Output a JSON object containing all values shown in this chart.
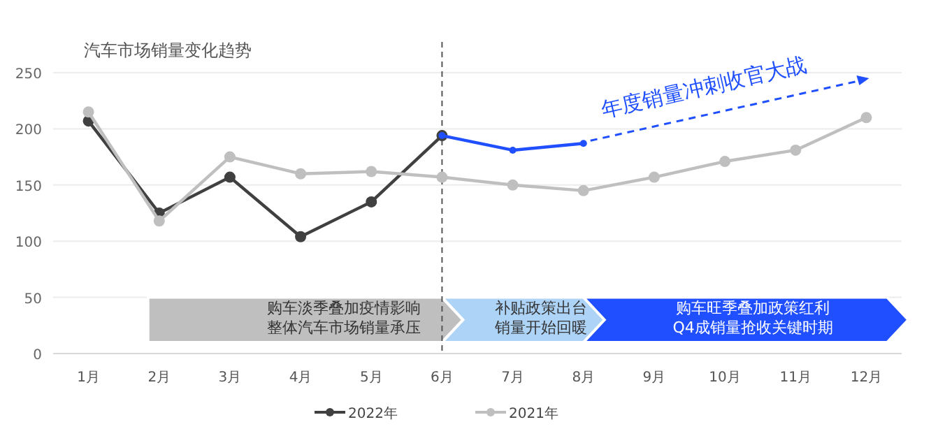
{
  "chart_data": {
    "type": "line",
    "title": "汽车市场销量变化趋势",
    "categories": [
      "1月",
      "2月",
      "3月",
      "4月",
      "5月",
      "6月",
      "7月",
      "8月",
      "9月",
      "10月",
      "11月",
      "12月"
    ],
    "series": [
      {
        "name": "2022年",
        "color": "#404040",
        "values": [
          207,
          125,
          157,
          104,
          135,
          194,
          null,
          null,
          null,
          null,
          null,
          null
        ]
      },
      {
        "color": "#1f4fff",
        "values": [
          null,
          null,
          null,
          null,
          null,
          194,
          181,
          187,
          null,
          null,
          null,
          null
        ]
      },
      {
        "name": "2021年",
        "color": "#bfbfbf",
        "values": [
          215,
          118,
          175,
          160,
          162,
          157,
          150,
          145,
          157,
          171,
          181,
          210
        ]
      }
    ],
    "ylim": [
      0,
      250
    ],
    "yticks": [
      0,
      50,
      100,
      150,
      200,
      250
    ],
    "grid": "y",
    "marker": "circle",
    "legend": "bottom",
    "ref_lines": [
      {
        "axis": "x",
        "value": "6月",
        "color": "#555555",
        "line_style": "dashed"
      }
    ],
    "bands": [
      {
        "axis": "x",
        "from": "2月",
        "to": "6月",
        "label": "购车淡季叠加疫情影响整体汽车市场销量承压",
        "color": "#bfbfbf"
      },
      {
        "axis": "x",
        "from": "6月",
        "to": "8月",
        "label": "补贴政策出台销量开始回暖",
        "color": "#add3f7"
      },
      {
        "axis": "x",
        "from": "8月",
        "to": "12月",
        "label": "购车旺季叠加政策红利Q4成销量抢收关键时期",
        "color": "#1f4fff"
      }
    ],
    "annotations": [
      {
        "text": "年度销量冲刺收官大战",
        "x": "8月",
        "y": 187
      }
    ]
  }
}
